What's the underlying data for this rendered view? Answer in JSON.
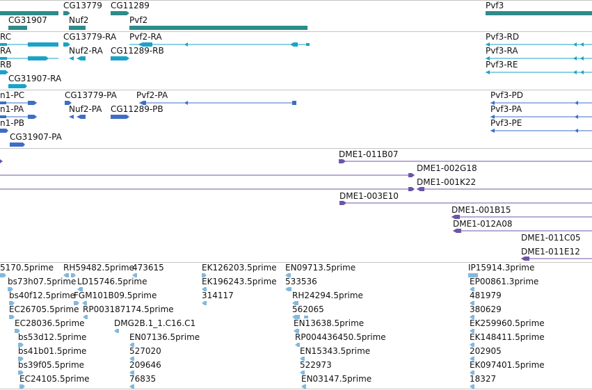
{
  "colors": {
    "gene": "#2e8b8b",
    "mrna": "#1aa3c7",
    "protein": "#3d6ec4",
    "clone": "#6c54a8",
    "est": "#84b8dd",
    "separator": "#c4c4c4"
  },
  "tracks": {
    "gene": {
      "labels": [
        "CG13779",
        "CG11289",
        "Pvf3",
        "CG31907",
        "Nuf2",
        "Pvf2"
      ]
    },
    "mrna": {
      "labels": [
        "RC",
        "CG13779-RA",
        "Pvf2-RA",
        "Pvf3-RD",
        "RA",
        "Nuf2-RA",
        "CG11289-RB",
        "Pvf3-RA",
        "RB",
        "Pvf3-RE",
        "CG31907-RA"
      ]
    },
    "protein": {
      "labels": [
        "n1-PC",
        "CG13779-PA",
        "Pvf2-PA",
        "Pvf3-PD",
        "n1-PA",
        "Nuf2-PA",
        "CG11289-PB",
        "Pvf3-PA",
        "n1-PB",
        "Pvf3-PE",
        "CG31907-PA"
      ]
    },
    "clone": {
      "labels": [
        "DME1-011B07",
        "DME1-002G18",
        "DME1-001K22",
        "DME1-003E10",
        "DME1-001B15",
        "DME1-012A08",
        "DME1-011C05",
        "DME1-011E12"
      ]
    },
    "est": {
      "labels": [
        "5170.5prime",
        "RH59482.5prime",
        "473615",
        "EK126203.5prime",
        "EN09713.5prime",
        "IP15914.3prime",
        "bs73h07.5prime",
        "LD15746.5prime",
        "EK196243.5prime",
        "533536",
        "EP00861.3prime",
        "bs40f12.5prime",
        "FGM101B09.5prime",
        "314117",
        "RH24294.5prime",
        "481979",
        "EC26705.5prime",
        "RP003187174.5prime",
        "562065",
        "380629",
        "EC28036.5prime",
        "DMG2B.1_1.C16.C1",
        "EN13638.5prime",
        "EK259960.5prime",
        "bs53d12.5prime",
        "EN07136.5prime",
        "RP004436450.5prime",
        "EK148411.5prime",
        "bs41b01.5prime",
        "527020",
        "EN15343.5prime",
        "202905",
        "bs39f05.5prime",
        "209646",
        "522973",
        "EK097401.5prime",
        "EC24105.5prime",
        "76835",
        "EN03147.5prime",
        "18327"
      ]
    }
  }
}
